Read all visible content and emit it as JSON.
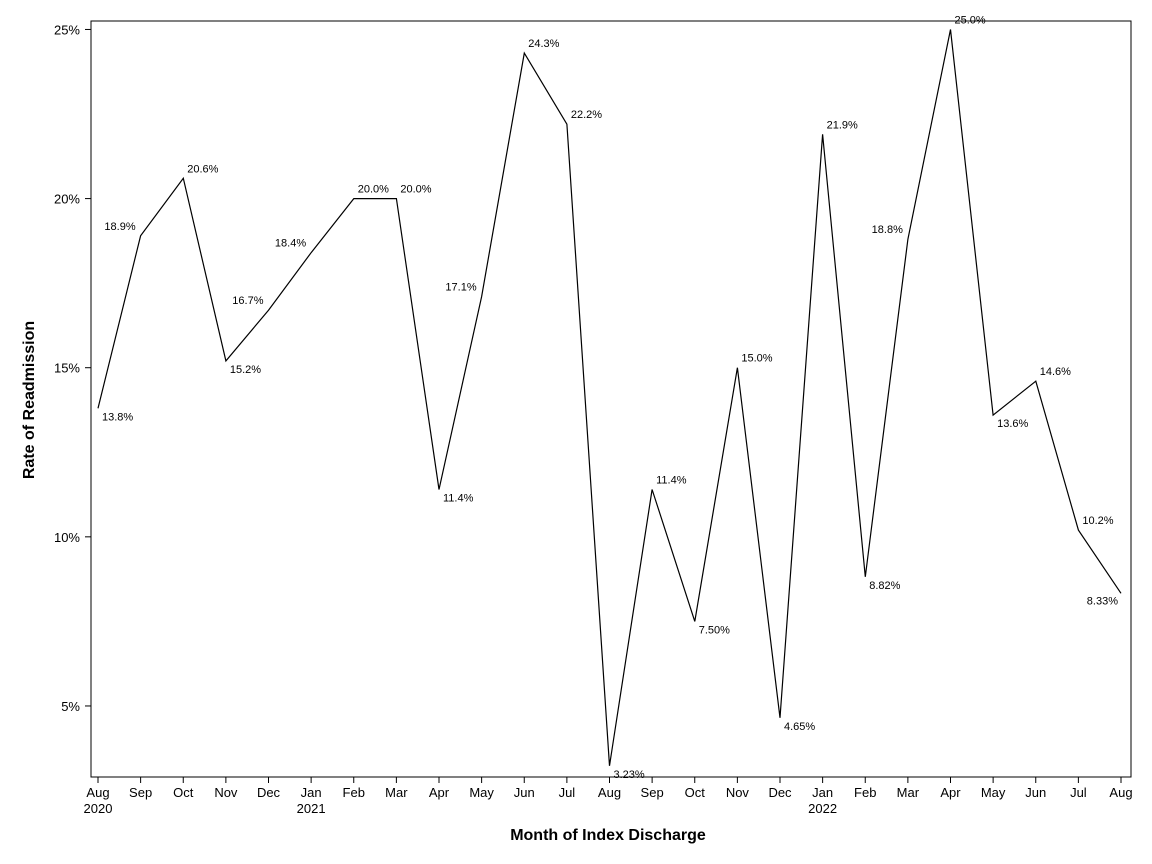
{
  "chart_data": {
    "type": "line",
    "title": "",
    "xlabel": "Month of Index Discharge",
    "ylabel": "Rate of Readmission",
    "x": [
      "2020-08",
      "2020-09",
      "2020-10",
      "2020-11",
      "2020-12",
      "2021-01",
      "2021-02",
      "2021-03",
      "2021-04",
      "2021-05",
      "2021-06",
      "2021-07",
      "2021-08",
      "2021-09",
      "2021-10",
      "2021-11",
      "2021-12",
      "2022-01",
      "2022-02",
      "2022-03",
      "2022-04",
      "2022-05",
      "2022-06",
      "2022-07",
      "2022-08"
    ],
    "x_tick_labels": [
      {
        "month": "Aug",
        "year": "2020"
      },
      {
        "month": "Sep",
        "year": ""
      },
      {
        "month": "Oct",
        "year": ""
      },
      {
        "month": "Nov",
        "year": ""
      },
      {
        "month": "Dec",
        "year": ""
      },
      {
        "month": "Jan",
        "year": "2021"
      },
      {
        "month": "Feb",
        "year": ""
      },
      {
        "month": "Mar",
        "year": ""
      },
      {
        "month": "Apr",
        "year": ""
      },
      {
        "month": "May",
        "year": ""
      },
      {
        "month": "Jun",
        "year": ""
      },
      {
        "month": "Jul",
        "year": ""
      },
      {
        "month": "Aug",
        "year": ""
      },
      {
        "month": "Sep",
        "year": ""
      },
      {
        "month": "Oct",
        "year": ""
      },
      {
        "month": "Nov",
        "year": ""
      },
      {
        "month": "Dec",
        "year": ""
      },
      {
        "month": "Jan",
        "year": "2022"
      },
      {
        "month": "Feb",
        "year": ""
      },
      {
        "month": "Mar",
        "year": ""
      },
      {
        "month": "Apr",
        "year": ""
      },
      {
        "month": "May",
        "year": ""
      },
      {
        "month": "Jun",
        "year": ""
      },
      {
        "month": "Jul",
        "year": ""
      },
      {
        "month": "Aug",
        "year": ""
      }
    ],
    "values": [
      13.8,
      18.9,
      20.6,
      15.2,
      16.7,
      18.4,
      20.0,
      20.0,
      11.4,
      17.1,
      24.3,
      22.2,
      3.23,
      11.4,
      7.5,
      15.0,
      4.65,
      21.9,
      8.82,
      18.8,
      25.0,
      13.6,
      14.6,
      10.2,
      8.33
    ],
    "data_labels": [
      "13.8%",
      "18.9%",
      "20.6%",
      "15.2%",
      "16.7%",
      "18.4%",
      "20.0%",
      "20.0%",
      "11.4%",
      "17.1%",
      "24.3%",
      "22.2%",
      "3.23%",
      "11.4%",
      "7.50%",
      "15.0%",
      "4.65%",
      "21.9%",
      "8.82%",
      "18.8%",
      "25.0%",
      "13.6%",
      "14.6%",
      "10.2%",
      "8.33%"
    ],
    "y_ticks": [
      {
        "value": 5,
        "label": "5%"
      },
      {
        "value": 10,
        "label": "10%"
      },
      {
        "value": 15,
        "label": "15%"
      },
      {
        "value": 20,
        "label": "20%"
      },
      {
        "value": 25,
        "label": "25%"
      }
    ],
    "ylim": [
      2.9,
      25.25
    ],
    "grid": false,
    "line_color": "#000000"
  }
}
